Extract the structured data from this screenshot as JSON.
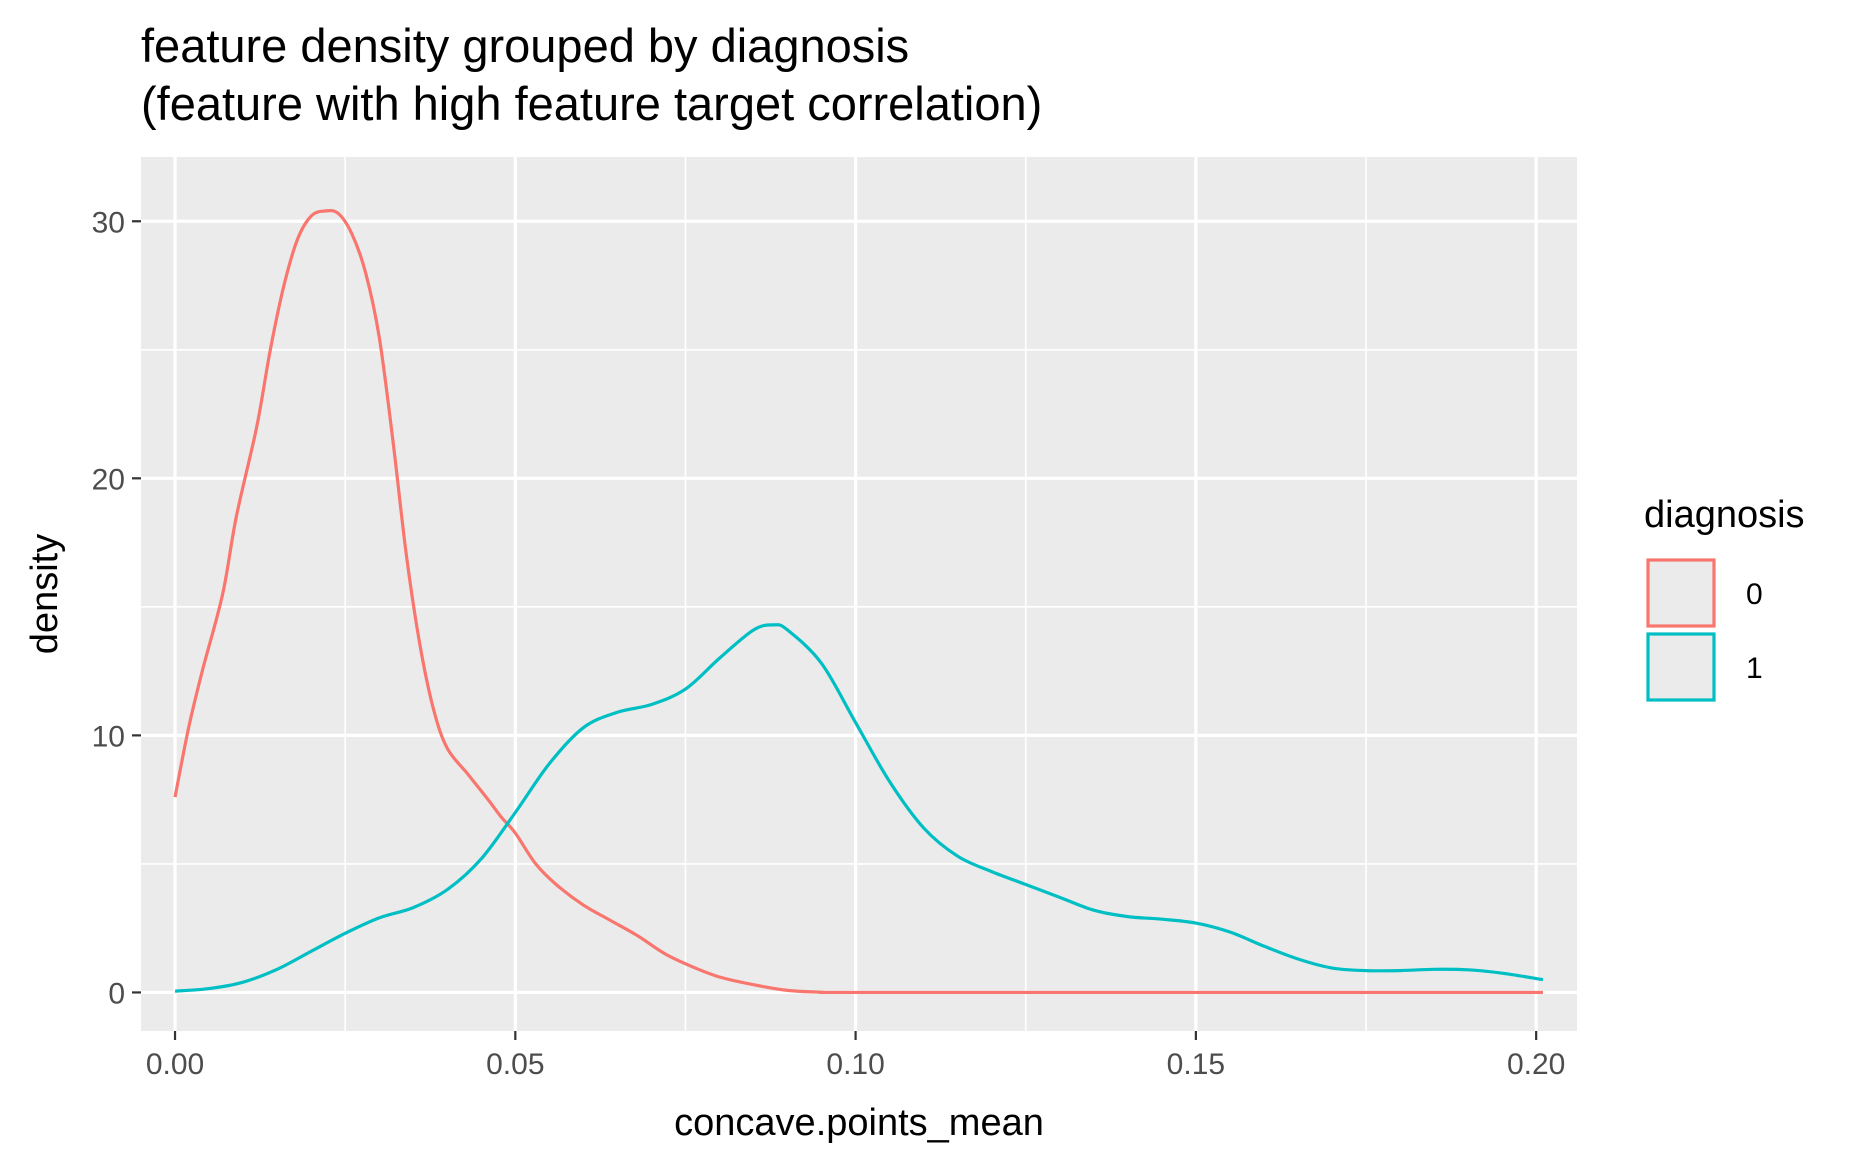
{
  "chart_data": {
    "type": "line",
    "title": "feature density grouped by diagnosis",
    "subtitle": "(feature with high feature target correlation)",
    "xlabel": "concave.points_mean",
    "ylabel": "density",
    "xlim": [
      -0.005,
      0.206
    ],
    "ylim": [
      -1.5,
      32.5
    ],
    "x_ticks": [
      0.0,
      0.05,
      0.1,
      0.15,
      0.2
    ],
    "x_tick_labels": [
      "0.00",
      "0.05",
      "0.10",
      "0.15",
      "0.20"
    ],
    "y_ticks": [
      0,
      10,
      20,
      30
    ],
    "y_tick_labels": [
      "0",
      "10",
      "20",
      "30"
    ],
    "grid": true,
    "legend": {
      "title": "diagnosis",
      "position": "right"
    },
    "series": [
      {
        "name": "0",
        "color": "#F8766D",
        "points": [
          [
            0.0,
            7.6
          ],
          [
            0.002,
            10.3
          ],
          [
            0.004,
            12.5
          ],
          [
            0.007,
            15.5
          ],
          [
            0.009,
            18.5
          ],
          [
            0.012,
            22.0
          ],
          [
            0.014,
            25.0
          ],
          [
            0.016,
            27.5
          ],
          [
            0.018,
            29.3
          ],
          [
            0.02,
            30.2
          ],
          [
            0.022,
            30.4
          ],
          [
            0.024,
            30.3
          ],
          [
            0.026,
            29.5
          ],
          [
            0.028,
            28.0
          ],
          [
            0.03,
            25.5
          ],
          [
            0.032,
            21.5
          ],
          [
            0.034,
            17.0
          ],
          [
            0.036,
            13.5
          ],
          [
            0.038,
            11.0
          ],
          [
            0.04,
            9.5
          ],
          [
            0.043,
            8.5
          ],
          [
            0.046,
            7.5
          ],
          [
            0.048,
            6.8
          ],
          [
            0.05,
            6.2
          ],
          [
            0.053,
            5.0
          ],
          [
            0.056,
            4.2
          ],
          [
            0.06,
            3.4
          ],
          [
            0.064,
            2.8
          ],
          [
            0.068,
            2.2
          ],
          [
            0.072,
            1.5
          ],
          [
            0.076,
            1.0
          ],
          [
            0.08,
            0.6
          ],
          [
            0.085,
            0.3
          ],
          [
            0.09,
            0.08
          ],
          [
            0.095,
            0.01
          ],
          [
            0.1,
            0.0
          ],
          [
            0.15,
            0.0
          ],
          [
            0.201,
            0.0
          ]
        ]
      },
      {
        "name": "1",
        "color": "#00BFC4",
        "points": [
          [
            0.0,
            0.05
          ],
          [
            0.005,
            0.15
          ],
          [
            0.01,
            0.4
          ],
          [
            0.015,
            0.9
          ],
          [
            0.02,
            1.6
          ],
          [
            0.025,
            2.3
          ],
          [
            0.03,
            2.9
          ],
          [
            0.035,
            3.3
          ],
          [
            0.04,
            4.0
          ],
          [
            0.045,
            5.2
          ],
          [
            0.05,
            7.0
          ],
          [
            0.055,
            8.9
          ],
          [
            0.06,
            10.3
          ],
          [
            0.065,
            10.9
          ],
          [
            0.07,
            11.2
          ],
          [
            0.075,
            11.8
          ],
          [
            0.08,
            13.0
          ],
          [
            0.085,
            14.1
          ],
          [
            0.088,
            14.3
          ],
          [
            0.09,
            14.1
          ],
          [
            0.095,
            12.8
          ],
          [
            0.1,
            10.5
          ],
          [
            0.105,
            8.2
          ],
          [
            0.11,
            6.4
          ],
          [
            0.115,
            5.3
          ],
          [
            0.12,
            4.7
          ],
          [
            0.125,
            4.2
          ],
          [
            0.13,
            3.7
          ],
          [
            0.135,
            3.2
          ],
          [
            0.14,
            2.95
          ],
          [
            0.145,
            2.85
          ],
          [
            0.15,
            2.7
          ],
          [
            0.155,
            2.35
          ],
          [
            0.16,
            1.8
          ],
          [
            0.165,
            1.3
          ],
          [
            0.17,
            0.95
          ],
          [
            0.175,
            0.85
          ],
          [
            0.18,
            0.85
          ],
          [
            0.185,
            0.9
          ],
          [
            0.19,
            0.88
          ],
          [
            0.195,
            0.75
          ],
          [
            0.201,
            0.5
          ]
        ]
      }
    ]
  }
}
